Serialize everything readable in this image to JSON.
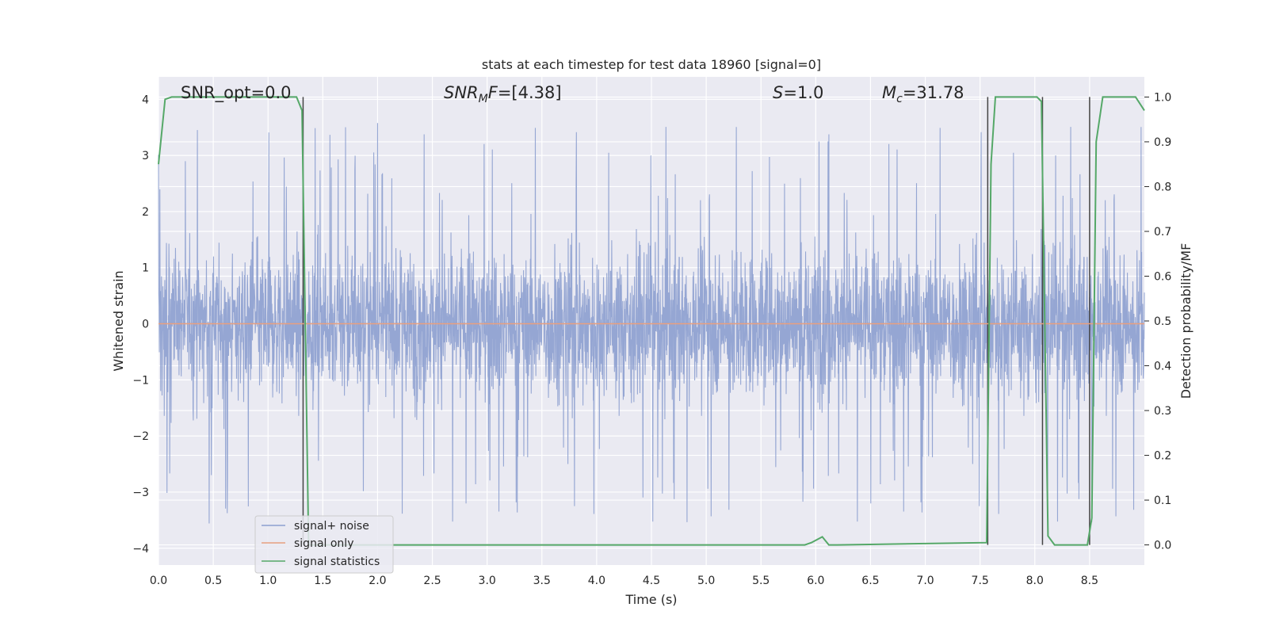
{
  "chart_data": {
    "type": "line",
    "title": "stats at each timestep for test data 18960 [signal=0]",
    "xlabel": "Time (s)",
    "ylabel": "Whitened strain",
    "y2label": "Detection probability/MF",
    "xlim": [
      0.0,
      9.0
    ],
    "ylim": [
      -4.3,
      4.4
    ],
    "y2lim": [
      -0.045,
      1.045
    ],
    "xticks": [
      "0.0",
      "0.5",
      "1.0",
      "1.5",
      "2.0",
      "2.5",
      "3.0",
      "3.5",
      "4.0",
      "4.5",
      "5.0",
      "5.5",
      "6.0",
      "6.5",
      "7.0",
      "7.5",
      "8.0",
      "8.5"
    ],
    "yticks": [
      "4",
      "3",
      "2",
      "1",
      "0",
      "−1",
      "−2",
      "−3",
      "−4"
    ],
    "y2ticks": [
      "1.0",
      "0.9",
      "0.8",
      "0.7",
      "0.6",
      "0.5",
      "0.4",
      "0.3",
      "0.2",
      "0.1",
      "0.0"
    ],
    "grid": true,
    "legend_placement": "lower-left",
    "annotations": {
      "snr_opt": "SNR_opt=0.0",
      "snr_mf_sym": "SNR",
      "snr_mf_sub": "M",
      "snr_mf_sym2": "F",
      "snr_mf_val": "=[4.38]",
      "s_sym": "S",
      "s_val": "=1.0",
      "mc_sym": "M",
      "mc_sub": "c",
      "mc_val": "=31.78"
    },
    "series": [
      {
        "name": "signal+ noise",
        "color": "#8c9fcf",
        "kind": "noise",
        "amplitude_envelope": {
          "typical": 1.6,
          "peak_max": 4.0,
          "trough_min": -3.8
        }
      },
      {
        "name": "signal only",
        "color": "#e8a07f",
        "x": [
          0.0,
          9.0
        ],
        "y": [
          0.0,
          0.0
        ]
      },
      {
        "name": "signal statistics",
        "color": "#55a868",
        "axis": "right",
        "x": [
          0.0,
          0.06,
          0.12,
          1.26,
          1.31,
          1.37,
          1.45,
          5.9,
          5.96,
          6.06,
          6.12,
          6.2,
          7.56,
          7.6,
          7.64,
          8.02,
          8.06,
          8.12,
          8.18,
          8.48,
          8.52,
          8.56,
          8.62,
          8.92,
          9.0
        ],
        "y": [
          0.85,
          0.995,
          1.0,
          1.0,
          0.97,
          0.0,
          0.0,
          0.0,
          0.005,
          0.018,
          0.0,
          0.0,
          0.005,
          0.85,
          1.0,
          1.0,
          0.99,
          0.02,
          0.0,
          0.0,
          0.06,
          0.9,
          1.0,
          1.0,
          0.97
        ]
      }
    ],
    "vertical_markers_x": [
      1.32,
      7.57,
      8.07,
      8.5
    ]
  }
}
